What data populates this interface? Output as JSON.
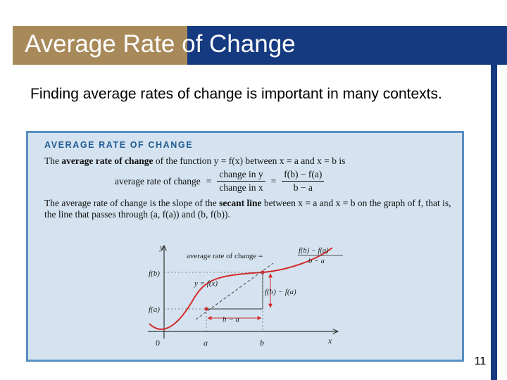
{
  "slide": {
    "title": "Average Rate of Change",
    "intro": "Finding average rates of change is important in many contexts.",
    "page_number": "11",
    "colors": {
      "title_blue": "#163a80",
      "title_gold": "#a88a5a",
      "box_fill": "#d4e3ef",
      "box_border": "#5a8fc2",
      "curve": "#d42a2a"
    }
  },
  "box": {
    "heading": "AVERAGE RATE OF CHANGE",
    "line1_pre": "The ",
    "line1_bold": "average rate of change",
    "line1_post": " of the function y = f(x) between x = a and x = b is",
    "formula_label": "average rate of change",
    "formula_eq1": "=",
    "formula_frac1_num": "change in y",
    "formula_frac1_den": "change in x",
    "formula_eq2": "=",
    "formula_frac2_num": "f(b) − f(a)",
    "formula_frac2_den": "b − a",
    "para_pre": "The average rate of change is the slope of the ",
    "para_bold": "secant line",
    "para_post": " between x = a and x = b on the graph of f, that is, the line that passes through (a, f(a)) and (b, f(b))."
  },
  "graph": {
    "y_axis_label": "y",
    "x_axis_label": "x",
    "origin_label": "0",
    "tick_a": "a",
    "tick_b": "b",
    "fb_label": "f(b)",
    "fa_label": "f(a)",
    "curve_label": "y = f(x)",
    "rise_label": "f(b) − f(a)",
    "run_label": "b − a",
    "annot_text": "average rate of change =",
    "annot_num": "f(b) − f(a)",
    "annot_den": "b − a"
  }
}
